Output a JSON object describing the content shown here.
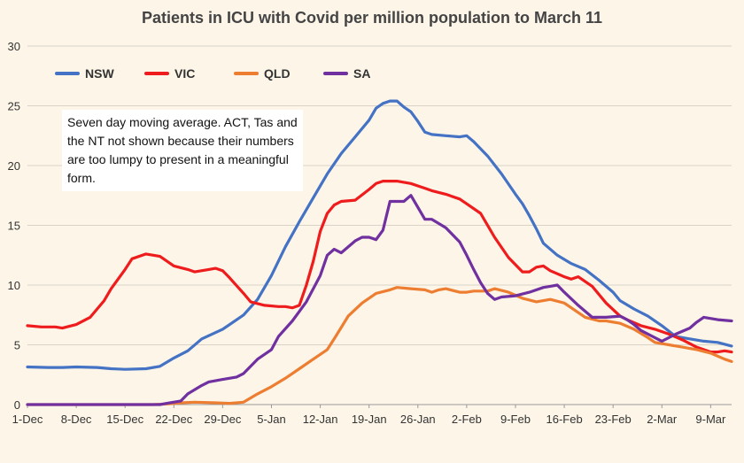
{
  "chart_data": {
    "type": "line",
    "title": "Patients in ICU with Covid per million population to March 11",
    "ylim": [
      0,
      30
    ],
    "yticks": [
      0,
      5,
      10,
      15,
      20,
      25,
      30
    ],
    "xlim": [
      0,
      101
    ],
    "xticks": [
      {
        "x": 0,
        "label": "1-Dec"
      },
      {
        "x": 7,
        "label": "8-Dec"
      },
      {
        "x": 14,
        "label": "15-Dec"
      },
      {
        "x": 21,
        "label": "22-Dec"
      },
      {
        "x": 28,
        "label": "29-Dec"
      },
      {
        "x": 35,
        "label": "5-Jan"
      },
      {
        "x": 42,
        "label": "12-Jan"
      },
      {
        "x": 49,
        "label": "19-Jan"
      },
      {
        "x": 56,
        "label": "26-Jan"
      },
      {
        "x": 63,
        "label": "2-Feb"
      },
      {
        "x": 70,
        "label": "9-Feb"
      },
      {
        "x": 77,
        "label": "16-Feb"
      },
      {
        "x": 84,
        "label": "23-Feb"
      },
      {
        "x": 91,
        "label": "2-Mar"
      },
      {
        "x": 98,
        "label": "9-Mar"
      }
    ],
    "grid": "horizontal",
    "legend_position": "top-left",
    "annotation": "Seven day moving average. ACT, Tas and the NT not shown because their numbers are too lumpy to present in a meaningful form.",
    "series": [
      {
        "name": "NSW",
        "color": "#4472c4",
        "points": [
          [
            0,
            3.15
          ],
          [
            3,
            3.1
          ],
          [
            5,
            3.1
          ],
          [
            7,
            3.15
          ],
          [
            10,
            3.1
          ],
          [
            12,
            3.0
          ],
          [
            14,
            2.95
          ],
          [
            17,
            3.0
          ],
          [
            19,
            3.2
          ],
          [
            21,
            3.9
          ],
          [
            23,
            4.5
          ],
          [
            25,
            5.5
          ],
          [
            28,
            6.3
          ],
          [
            31,
            7.5
          ],
          [
            33,
            8.8
          ],
          [
            35,
            10.8
          ],
          [
            37,
            13.2
          ],
          [
            39,
            15.3
          ],
          [
            41,
            17.3
          ],
          [
            43,
            19.3
          ],
          [
            45,
            21.0
          ],
          [
            47,
            22.4
          ],
          [
            49,
            23.8
          ],
          [
            50,
            24.8
          ],
          [
            51,
            25.2
          ],
          [
            52,
            25.4
          ],
          [
            53,
            25.4
          ],
          [
            54,
            24.9
          ],
          [
            55,
            24.5
          ],
          [
            56,
            23.7
          ],
          [
            57,
            22.8
          ],
          [
            58,
            22.6
          ],
          [
            60,
            22.5
          ],
          [
            62,
            22.4
          ],
          [
            63,
            22.5
          ],
          [
            64,
            22.0
          ],
          [
            66,
            20.8
          ],
          [
            68,
            19.3
          ],
          [
            70,
            17.6
          ],
          [
            71,
            16.8
          ],
          [
            72,
            15.8
          ],
          [
            73,
            14.7
          ],
          [
            74,
            13.5
          ],
          [
            76,
            12.5
          ],
          [
            78,
            11.8
          ],
          [
            80,
            11.3
          ],
          [
            82,
            10.4
          ],
          [
            84,
            9.4
          ],
          [
            85,
            8.7
          ],
          [
            87,
            8.0
          ],
          [
            89,
            7.4
          ],
          [
            91,
            6.6
          ],
          [
            93,
            5.7
          ],
          [
            95,
            5.5
          ],
          [
            97,
            5.3
          ],
          [
            99,
            5.2
          ],
          [
            101,
            4.9
          ]
        ]
      },
      {
        "name": "VIC",
        "color": "#ee1c1c",
        "points": [
          [
            0,
            6.6
          ],
          [
            2,
            6.5
          ],
          [
            4,
            6.5
          ],
          [
            5,
            6.4
          ],
          [
            7,
            6.7
          ],
          [
            9,
            7.3
          ],
          [
            11,
            8.7
          ],
          [
            12,
            9.7
          ],
          [
            14,
            11.3
          ],
          [
            15,
            12.2
          ],
          [
            17,
            12.6
          ],
          [
            19,
            12.4
          ],
          [
            21,
            11.6
          ],
          [
            23,
            11.3
          ],
          [
            24,
            11.1
          ],
          [
            26,
            11.3
          ],
          [
            27,
            11.4
          ],
          [
            28,
            11.2
          ],
          [
            29,
            10.6
          ],
          [
            31,
            9.3
          ],
          [
            32,
            8.6
          ],
          [
            34,
            8.3
          ],
          [
            36,
            8.2
          ],
          [
            37,
            8.2
          ],
          [
            38,
            8.1
          ],
          [
            39,
            8.3
          ],
          [
            40,
            10.0
          ],
          [
            41,
            12.0
          ],
          [
            42,
            14.5
          ],
          [
            43,
            16.0
          ],
          [
            44,
            16.7
          ],
          [
            45,
            17.0
          ],
          [
            47,
            17.1
          ],
          [
            49,
            18.0
          ],
          [
            50,
            18.5
          ],
          [
            51,
            18.7
          ],
          [
            53,
            18.7
          ],
          [
            55,
            18.5
          ],
          [
            56,
            18.3
          ],
          [
            57,
            18.1
          ],
          [
            58,
            17.9
          ],
          [
            60,
            17.6
          ],
          [
            62,
            17.2
          ],
          [
            63,
            16.8
          ],
          [
            65,
            16.0
          ],
          [
            67,
            14.0
          ],
          [
            69,
            12.3
          ],
          [
            71,
            11.1
          ],
          [
            72,
            11.1
          ],
          [
            73,
            11.5
          ],
          [
            74,
            11.6
          ],
          [
            75,
            11.2
          ],
          [
            77,
            10.7
          ],
          [
            78,
            10.5
          ],
          [
            79,
            10.7
          ],
          [
            81,
            9.9
          ],
          [
            83,
            8.5
          ],
          [
            85,
            7.4
          ],
          [
            86,
            7.1
          ],
          [
            88,
            6.6
          ],
          [
            90,
            6.3
          ],
          [
            92,
            5.9
          ],
          [
            94,
            5.4
          ],
          [
            96,
            4.8
          ],
          [
            98,
            4.4
          ],
          [
            99,
            4.4
          ],
          [
            100,
            4.5
          ],
          [
            101,
            4.4
          ]
        ]
      },
      {
        "name": "QLD",
        "color": "#ed7d31",
        "points": [
          [
            0,
            0
          ],
          [
            18,
            0
          ],
          [
            20,
            0.05
          ],
          [
            22,
            0.15
          ],
          [
            24,
            0.2
          ],
          [
            27,
            0.15
          ],
          [
            29,
            0.1
          ],
          [
            31,
            0.2
          ],
          [
            33,
            0.9
          ],
          [
            35,
            1.5
          ],
          [
            37,
            2.2
          ],
          [
            39,
            3.0
          ],
          [
            41,
            3.8
          ],
          [
            43,
            4.6
          ],
          [
            44,
            5.5
          ],
          [
            46,
            7.4
          ],
          [
            48,
            8.5
          ],
          [
            50,
            9.3
          ],
          [
            52,
            9.6
          ],
          [
            53,
            9.8
          ],
          [
            55,
            9.7
          ],
          [
            57,
            9.6
          ],
          [
            58,
            9.4
          ],
          [
            59,
            9.6
          ],
          [
            60,
            9.7
          ],
          [
            62,
            9.4
          ],
          [
            63,
            9.4
          ],
          [
            64,
            9.5
          ],
          [
            66,
            9.5
          ],
          [
            67,
            9.7
          ],
          [
            69,
            9.4
          ],
          [
            71,
            8.9
          ],
          [
            73,
            8.6
          ],
          [
            75,
            8.8
          ],
          [
            77,
            8.5
          ],
          [
            78,
            8.1
          ],
          [
            80,
            7.3
          ],
          [
            82,
            7.0
          ],
          [
            83,
            7.0
          ],
          [
            85,
            6.8
          ],
          [
            87,
            6.3
          ],
          [
            89,
            5.6
          ],
          [
            90,
            5.2
          ],
          [
            92,
            5.0
          ],
          [
            94,
            4.8
          ],
          [
            96,
            4.6
          ],
          [
            98,
            4.3
          ],
          [
            100,
            3.8
          ],
          [
            101,
            3.6
          ]
        ]
      },
      {
        "name": "SA",
        "color": "#7030a0",
        "points": [
          [
            0,
            0
          ],
          [
            17,
            0
          ],
          [
            19,
            0
          ],
          [
            20,
            0.1
          ],
          [
            22,
            0.3
          ],
          [
            23,
            0.9
          ],
          [
            25,
            1.6
          ],
          [
            26,
            1.9
          ],
          [
            28,
            2.1
          ],
          [
            30,
            2.3
          ],
          [
            31,
            2.6
          ],
          [
            33,
            3.8
          ],
          [
            35,
            4.6
          ],
          [
            36,
            5.7
          ],
          [
            38,
            7.0
          ],
          [
            40,
            8.6
          ],
          [
            42,
            10.8
          ],
          [
            43,
            12.5
          ],
          [
            44,
            13.0
          ],
          [
            45,
            12.7
          ],
          [
            47,
            13.7
          ],
          [
            48,
            14.0
          ],
          [
            49,
            14.0
          ],
          [
            50,
            13.8
          ],
          [
            51,
            14.6
          ],
          [
            52,
            17.0
          ],
          [
            53,
            17.0
          ],
          [
            54,
            17.0
          ],
          [
            55,
            17.5
          ],
          [
            56,
            16.5
          ],
          [
            57,
            15.5
          ],
          [
            58,
            15.5
          ],
          [
            60,
            14.8
          ],
          [
            62,
            13.6
          ],
          [
            63,
            12.5
          ],
          [
            64,
            11.3
          ],
          [
            65,
            10.2
          ],
          [
            66,
            9.3
          ],
          [
            67,
            8.8
          ],
          [
            68,
            9.0
          ],
          [
            70,
            9.1
          ],
          [
            72,
            9.4
          ],
          [
            74,
            9.8
          ],
          [
            75,
            9.9
          ],
          [
            76,
            10.0
          ],
          [
            77,
            9.4
          ],
          [
            79,
            8.3
          ],
          [
            81,
            7.3
          ],
          [
            83,
            7.3
          ],
          [
            85,
            7.4
          ],
          [
            86,
            7.1
          ],
          [
            87,
            6.7
          ],
          [
            88,
            6.2
          ],
          [
            90,
            5.6
          ],
          [
            91,
            5.3
          ],
          [
            93,
            5.9
          ],
          [
            95,
            6.4
          ],
          [
            96,
            6.9
          ],
          [
            97,
            7.3
          ],
          [
            99,
            7.1
          ],
          [
            101,
            7.0
          ]
        ]
      }
    ]
  }
}
